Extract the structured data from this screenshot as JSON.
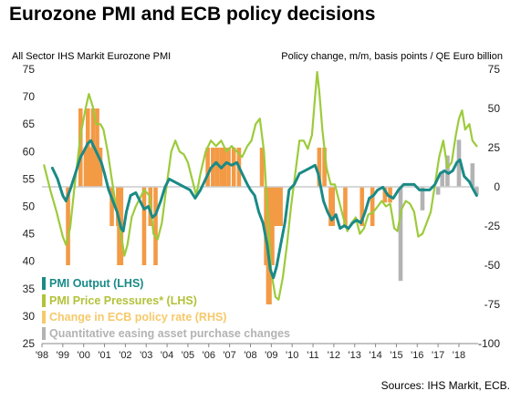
{
  "title": "Eurozone PMI and ECB policy decisions",
  "source": "Sources: IHS Markit, ECB.",
  "colors": {
    "output": "#1a8a86",
    "price": "#9ccb3b",
    "policy": "#f39a45",
    "qe": "#b3b3b3",
    "zero_line": "#cccccc"
  },
  "chart_data": {
    "type": "line",
    "title": "Eurozone PMI and ECB policy decisions",
    "left_axis_label": "All Sector IHS Markit Eurozone PMI",
    "right_axis_label": "Policy change, m/m, basis points / QE Euro billion",
    "ylim_left": [
      25,
      75
    ],
    "left_ticks": [
      "75",
      "70",
      "65",
      "60",
      "55",
      "50",
      "45",
      "40",
      "35",
      "30",
      "25"
    ],
    "ylim_right": [
      -100,
      75
    ],
    "right_ticks": [
      "75",
      "50",
      "25",
      "0",
      "-25",
      "-50",
      "-75",
      "-100"
    ],
    "xlim": [
      1998.0,
      2018.92
    ],
    "x_ticks": [
      "'98",
      "'99",
      "'00",
      "'01",
      "'02",
      "'03",
      "'04",
      "'05",
      "'06",
      "'07",
      "'08",
      "'09",
      "'10",
      "'11",
      "'12",
      "'13",
      "'14",
      "'15",
      "'16",
      "'17",
      "'18"
    ],
    "grid": false,
    "legend_placement": "bottom-left",
    "legend": [
      {
        "label": "PMI  Output (LHS)",
        "color": "#1a8a86"
      },
      {
        "label": "PMI Price Pressures* (LHS)",
        "color": "#b3c23a"
      },
      {
        "label": "Change in ECB policy rate (RHS)",
        "color": "#f6c96a"
      },
      {
        "label": "Quantitative easing asset purchase changes",
        "color": "#b3b3b3"
      }
    ],
    "series": [
      {
        "name": "PMI  Output (LHS)",
        "axis": "left",
        "points": [
          [
            1998.5,
            57
          ],
          [
            1998.75,
            55
          ],
          [
            1999.0,
            52
          ],
          [
            1999.15,
            51
          ],
          [
            1999.35,
            53
          ],
          [
            1999.6,
            56
          ],
          [
            1999.85,
            59
          ],
          [
            2000.0,
            60
          ],
          [
            2000.2,
            61.5
          ],
          [
            2000.35,
            62
          ],
          [
            2000.6,
            60
          ],
          [
            2000.85,
            58
          ],
          [
            2001.0,
            56
          ],
          [
            2001.2,
            53
          ],
          [
            2001.4,
            51
          ],
          [
            2001.6,
            49
          ],
          [
            2001.8,
            46
          ],
          [
            2001.9,
            45.5
          ],
          [
            2002.05,
            49
          ],
          [
            2002.25,
            52
          ],
          [
            2002.5,
            52.5
          ],
          [
            2002.7,
            51
          ],
          [
            2002.9,
            49.5
          ],
          [
            2003.1,
            50
          ],
          [
            2003.3,
            48
          ],
          [
            2003.45,
            48.5
          ],
          [
            2003.7,
            51
          ],
          [
            2003.9,
            53.5
          ],
          [
            2004.1,
            55
          ],
          [
            2004.35,
            54.5
          ],
          [
            2004.6,
            54
          ],
          [
            2004.85,
            53.5
          ],
          [
            2005.1,
            53
          ],
          [
            2005.35,
            51.5
          ],
          [
            2005.6,
            53
          ],
          [
            2005.85,
            55
          ],
          [
            2006.1,
            57
          ],
          [
            2006.35,
            58
          ],
          [
            2006.6,
            57
          ],
          [
            2006.85,
            58
          ],
          [
            2007.1,
            57.5
          ],
          [
            2007.35,
            58
          ],
          [
            2007.6,
            56
          ],
          [
            2007.85,
            54
          ],
          [
            2008.0,
            53
          ],
          [
            2008.2,
            52
          ],
          [
            2008.4,
            49
          ],
          [
            2008.6,
            47
          ],
          [
            2008.8,
            43
          ],
          [
            2008.95,
            38.5
          ],
          [
            2009.1,
            37
          ],
          [
            2009.25,
            39
          ],
          [
            2009.45,
            43
          ],
          [
            2009.65,
            47
          ],
          [
            2009.85,
            53
          ],
          [
            2010.1,
            54
          ],
          [
            2010.35,
            56
          ],
          [
            2010.6,
            56.5
          ],
          [
            2010.85,
            57
          ],
          [
            2011.1,
            57.5
          ],
          [
            2011.25,
            56
          ],
          [
            2011.5,
            51
          ],
          [
            2011.7,
            49
          ],
          [
            2011.9,
            47.5
          ],
          [
            2012.1,
            48.5
          ],
          [
            2012.3,
            46
          ],
          [
            2012.5,
            46.5
          ],
          [
            2012.7,
            46
          ],
          [
            2012.9,
            47
          ],
          [
            2013.1,
            47.5
          ],
          [
            2013.3,
            47
          ],
          [
            2013.5,
            49
          ],
          [
            2013.7,
            51.5
          ],
          [
            2013.9,
            52
          ],
          [
            2014.1,
            53
          ],
          [
            2014.35,
            53.5
          ],
          [
            2014.6,
            52
          ],
          [
            2014.85,
            51.5
          ],
          [
            2015.1,
            53
          ],
          [
            2015.35,
            54
          ],
          [
            2015.6,
            54
          ],
          [
            2015.85,
            54
          ],
          [
            2016.1,
            53
          ],
          [
            2016.35,
            53
          ],
          [
            2016.6,
            53
          ],
          [
            2016.85,
            54
          ],
          [
            2017.1,
            56
          ],
          [
            2017.3,
            56.5
          ],
          [
            2017.5,
            56
          ],
          [
            2017.7,
            56.5
          ],
          [
            2017.9,
            58
          ],
          [
            2018.05,
            58.5
          ],
          [
            2018.25,
            55.5
          ],
          [
            2018.5,
            54.5
          ],
          [
            2018.7,
            53
          ],
          [
            2018.85,
            52
          ]
        ]
      },
      {
        "name": "PMI Price Pressures* (LHS)",
        "axis": "left",
        "points": [
          [
            1998.1,
            57.5
          ],
          [
            1998.4,
            53
          ],
          [
            1998.7,
            49
          ],
          [
            1999.0,
            44.5
          ],
          [
            1999.15,
            43
          ],
          [
            1999.35,
            46
          ],
          [
            1999.6,
            55
          ],
          [
            1999.85,
            63
          ],
          [
            2000.1,
            68
          ],
          [
            2000.25,
            70.5
          ],
          [
            2000.45,
            68
          ],
          [
            2000.6,
            65
          ],
          [
            2000.8,
            65
          ],
          [
            2000.95,
            64
          ],
          [
            2001.15,
            60
          ],
          [
            2001.35,
            55
          ],
          [
            2001.55,
            50
          ],
          [
            2001.75,
            46
          ],
          [
            2001.95,
            41
          ],
          [
            2002.1,
            43
          ],
          [
            2002.3,
            48
          ],
          [
            2002.5,
            50
          ],
          [
            2002.7,
            51.5
          ],
          [
            2002.9,
            53
          ],
          [
            2003.15,
            52
          ],
          [
            2003.35,
            45
          ],
          [
            2003.55,
            44
          ],
          [
            2003.75,
            47
          ],
          [
            2003.95,
            53
          ],
          [
            2004.2,
            60
          ],
          [
            2004.4,
            62
          ],
          [
            2004.6,
            60
          ],
          [
            2004.8,
            59.5
          ],
          [
            2005.0,
            58
          ],
          [
            2005.2,
            55
          ],
          [
            2005.4,
            52
          ],
          [
            2005.6,
            56
          ],
          [
            2005.85,
            60
          ],
          [
            2006.1,
            62
          ],
          [
            2006.35,
            61
          ],
          [
            2006.6,
            62
          ],
          [
            2006.85,
            60
          ],
          [
            2007.1,
            61
          ],
          [
            2007.35,
            60
          ],
          [
            2007.6,
            59
          ],
          [
            2007.85,
            61
          ],
          [
            2008.05,
            62
          ],
          [
            2008.25,
            65
          ],
          [
            2008.45,
            66
          ],
          [
            2008.65,
            60
          ],
          [
            2008.85,
            47
          ],
          [
            2009.0,
            38
          ],
          [
            2009.2,
            33.5
          ],
          [
            2009.35,
            33
          ],
          [
            2009.55,
            37
          ],
          [
            2009.75,
            43
          ],
          [
            2009.95,
            50
          ],
          [
            2010.15,
            56
          ],
          [
            2010.35,
            62
          ],
          [
            2010.55,
            62
          ],
          [
            2010.75,
            60.5
          ],
          [
            2010.95,
            63
          ],
          [
            2011.1,
            70
          ],
          [
            2011.2,
            74.5
          ],
          [
            2011.3,
            71
          ],
          [
            2011.45,
            64
          ],
          [
            2011.65,
            57
          ],
          [
            2011.85,
            54
          ],
          [
            2012.05,
            54
          ],
          [
            2012.25,
            51
          ],
          [
            2012.45,
            48
          ],
          [
            2012.65,
            45.5
          ],
          [
            2012.85,
            47
          ],
          [
            2013.05,
            48
          ],
          [
            2013.25,
            45
          ],
          [
            2013.45,
            46
          ],
          [
            2013.65,
            48.5
          ],
          [
            2013.9,
            49
          ],
          [
            2014.1,
            50
          ],
          [
            2014.3,
            51
          ],
          [
            2014.5,
            50
          ],
          [
            2014.7,
            50.5
          ],
          [
            2014.9,
            46
          ],
          [
            2015.05,
            45.5
          ],
          [
            2015.25,
            49.5
          ],
          [
            2015.45,
            51
          ],
          [
            2015.65,
            50.5
          ],
          [
            2015.85,
            49
          ],
          [
            2016.05,
            44.5
          ],
          [
            2016.25,
            45
          ],
          [
            2016.45,
            47
          ],
          [
            2016.65,
            49
          ],
          [
            2016.85,
            54
          ],
          [
            2017.05,
            59
          ],
          [
            2017.25,
            62
          ],
          [
            2017.45,
            57
          ],
          [
            2017.65,
            58
          ],
          [
            2017.85,
            63
          ],
          [
            2018.0,
            66
          ],
          [
            2018.15,
            67.5
          ],
          [
            2018.3,
            64
          ],
          [
            2018.5,
            65
          ],
          [
            2018.65,
            62
          ],
          [
            2018.75,
            61.5
          ],
          [
            2018.85,
            61
          ]
        ]
      }
    ],
    "bar_series": [
      {
        "name": "Change in ECB policy rate (RHS)",
        "axis": "right",
        "bars": [
          [
            1999.25,
            -50
          ],
          [
            1999.85,
            50
          ],
          [
            2000.1,
            25
          ],
          [
            2000.2,
            50
          ],
          [
            2000.35,
            25
          ],
          [
            2000.45,
            50
          ],
          [
            2000.55,
            25
          ],
          [
            2000.65,
            50
          ],
          [
            2000.8,
            25
          ],
          [
            2001.35,
            -25
          ],
          [
            2001.65,
            -25
          ],
          [
            2001.7,
            -50
          ],
          [
            2001.8,
            -50
          ],
          [
            2002.9,
            -50
          ],
          [
            2003.2,
            -25
          ],
          [
            2003.45,
            -50
          ],
          [
            2005.95,
            25
          ],
          [
            2006.2,
            25
          ],
          [
            2006.4,
            25
          ],
          [
            2006.6,
            25
          ],
          [
            2006.75,
            25
          ],
          [
            2006.95,
            25
          ],
          [
            2007.2,
            25
          ],
          [
            2007.45,
            25
          ],
          [
            2008.55,
            25
          ],
          [
            2008.75,
            -50
          ],
          [
            2008.85,
            -75
          ],
          [
            2008.92,
            -75
          ],
          [
            2009.05,
            -50
          ],
          [
            2009.2,
            -25
          ],
          [
            2009.35,
            -25
          ],
          [
            2009.45,
            -25
          ],
          [
            2011.3,
            25
          ],
          [
            2011.55,
            25
          ],
          [
            2011.85,
            -25
          ],
          [
            2011.95,
            -25
          ],
          [
            2012.55,
            -25
          ],
          [
            2013.35,
            -25
          ],
          [
            2013.85,
            -25
          ],
          [
            2014.45,
            -10
          ],
          [
            2014.7,
            -10
          ]
        ]
      },
      {
        "name": "Quantitative easing asset purchase changes",
        "axis": "right",
        "bars": [
          [
            2015.2,
            -60
          ],
          [
            2016.25,
            -15
          ],
          [
            2017.0,
            -5
          ],
          [
            2017.2,
            10
          ],
          [
            2017.45,
            20
          ],
          [
            2018.0,
            30
          ],
          [
            2018.65,
            15
          ],
          [
            2018.85,
            -5
          ]
        ]
      }
    ]
  }
}
